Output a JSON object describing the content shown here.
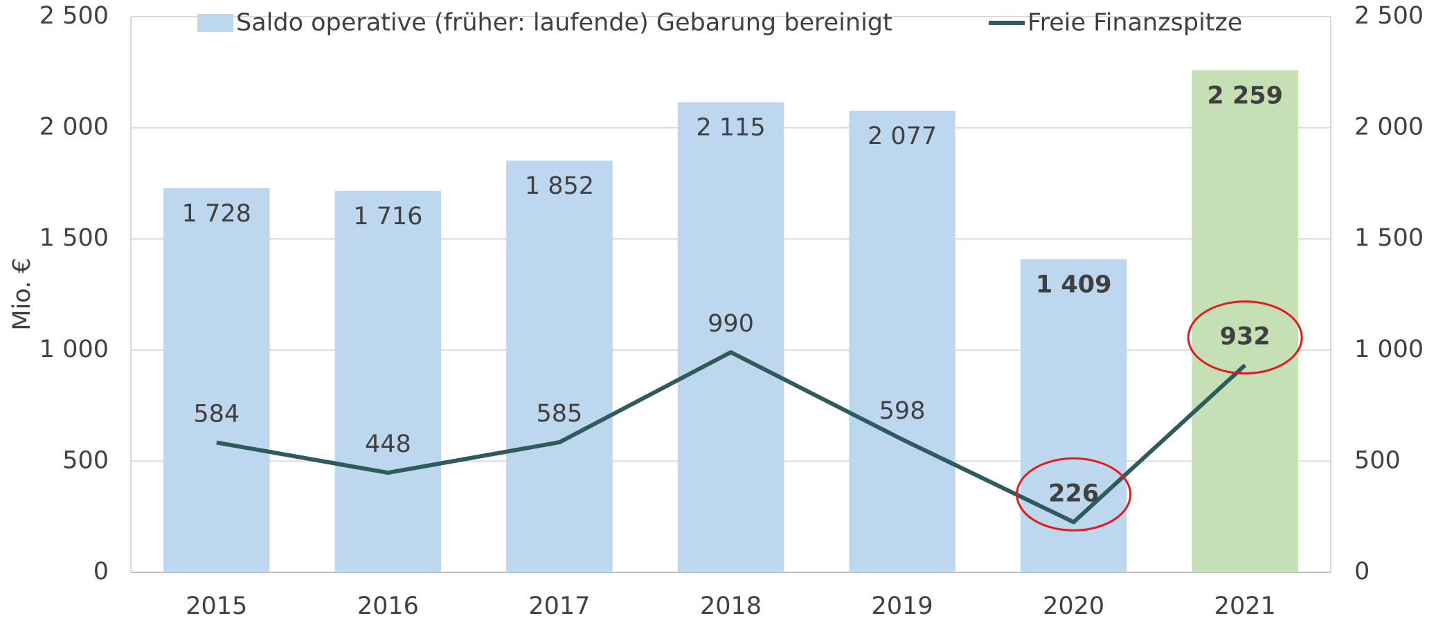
{
  "chart_data": {
    "type": "bar_line",
    "y_label": "Mio. €",
    "categories": [
      "2015",
      "2016",
      "2017",
      "2018",
      "2019",
      "2020",
      "2021"
    ],
    "highlight": [
      "2020",
      "2021"
    ],
    "series": [
      {
        "name": "Saldo operative (früher: laufende) Gebarung bereinigt",
        "type": "bar",
        "colors": [
          "#bdd7ee",
          "#bdd7ee",
          "#bdd7ee",
          "#bdd7ee",
          "#bdd7ee",
          "#bdd7ee",
          "#c5e0b4"
        ],
        "color": "#bdd7ee",
        "values": [
          1728,
          1716,
          1852,
          2115,
          2077,
          1409,
          2259
        ],
        "value_labels": [
          "1 728",
          "1 716",
          "1 852",
          "2 115",
          "2 077",
          "1 409",
          "2 259"
        ]
      },
      {
        "name": "Freie Finanzspitze",
        "type": "line",
        "axis": "y2",
        "color": "#2e5b5b",
        "values": [
          584,
          448,
          585,
          990,
          598,
          226,
          932
        ]
      }
    ],
    "ylim": [
      0,
      2500
    ],
    "yticks": [
      0,
      500,
      {
        "value": 1000,
        "label": "1 000"
      },
      {
        "value": 1500,
        "label": "1 500"
      },
      {
        "value": 2000,
        "label": "2 000"
      },
      {
        "value": 2500,
        "label": "2 500"
      }
    ],
    "y2lim": [
      0,
      2500
    ],
    "y2ticks": [
      0,
      500,
      {
        "value": 1000,
        "label": "1 000"
      },
      {
        "value": 1500,
        "label": "1 500"
      },
      {
        "value": 2000,
        "label": "2 000"
      },
      {
        "value": 2500,
        "label": "2 500"
      }
    ],
    "grid": true,
    "legend": "top"
  }
}
